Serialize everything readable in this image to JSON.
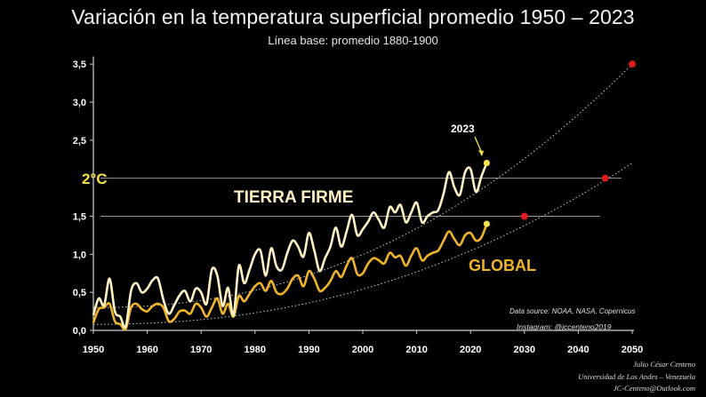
{
  "header": {
    "title": "Variación en la temperatura superficial promedio 1950 – 2023",
    "subtitle": "Línea base: promedio 1880-1900"
  },
  "annotations": {
    "threshold_2c": "2°C",
    "land_label": "TIERRA FIRME",
    "global_label": "GLOBAL",
    "year_callout": "2023",
    "source": "Data source: NOAA, NASA,  Copernicus",
    "instagram": "Instagram: @jccenteno2019"
  },
  "credits": {
    "author": "Julio César Centeno",
    "institution": "Universidad de Los Andes – Venezuela",
    "email": "JC-Centeno@Outlook.com"
  },
  "colors": {
    "background": "#000000",
    "land": "#fff2c4",
    "global": "#f0b429",
    "projection": "#cfcfcf",
    "marker_red": "#e01b1b",
    "marker_2023": "#f4e24a",
    "threshold_label": "#f4e24a"
  },
  "chart_data": {
    "type": "line",
    "xlim": [
      1950,
      2050
    ],
    "ylim": [
      0,
      3.6
    ],
    "x_ticks": [
      1950,
      1960,
      1970,
      1980,
      1990,
      2000,
      2010,
      2020,
      2030,
      2040,
      2050
    ],
    "x_tick_labels": [
      "1950",
      "1960",
      "1970",
      "1980",
      "1990",
      "2000",
      "2010",
      "2020",
      "2030",
      "2040",
      "2050"
    ],
    "y_ticks": [
      0,
      0.5,
      1.0,
      1.5,
      2.5,
      3.0,
      3.5
    ],
    "y_tick_labels": [
      "0,0",
      "0,5",
      "1,0",
      "1,5",
      "2,5",
      "3,0",
      "3,5"
    ],
    "reference_lines": [
      {
        "y": 2.0,
        "x_end": 2048
      },
      {
        "y": 1.5,
        "x_end": 2044
      }
    ],
    "x": [
      1950,
      1951,
      1952,
      1953,
      1954,
      1955,
      1956,
      1957,
      1958,
      1959,
      1960,
      1961,
      1962,
      1963,
      1964,
      1965,
      1966,
      1967,
      1968,
      1969,
      1970,
      1971,
      1972,
      1973,
      1974,
      1975,
      1976,
      1977,
      1978,
      1979,
      1980,
      1981,
      1982,
      1983,
      1984,
      1985,
      1986,
      1987,
      1988,
      1989,
      1990,
      1991,
      1992,
      1993,
      1994,
      1995,
      1996,
      1997,
      1998,
      1999,
      2000,
      2001,
      2002,
      2003,
      2004,
      2005,
      2006,
      2007,
      2008,
      2009,
      2010,
      2011,
      2012,
      2013,
      2014,
      2015,
      2016,
      2017,
      2018,
      2019,
      2020,
      2021,
      2022,
      2023
    ],
    "series": [
      {
        "values": [
          0.2,
          0.42,
          0.33,
          0.68,
          0.25,
          0.18,
          0.05,
          0.52,
          0.62,
          0.5,
          0.55,
          0.66,
          0.68,
          0.4,
          0.22,
          0.33,
          0.46,
          0.52,
          0.38,
          0.55,
          0.5,
          0.35,
          0.8,
          0.72,
          0.32,
          0.56,
          0.2,
          0.85,
          0.62,
          0.8,
          1.0,
          1.05,
          0.72,
          1.08,
          0.84,
          0.8,
          1.02,
          1.18,
          1.1,
          0.97,
          1.28,
          1.05,
          0.78,
          0.95,
          1.1,
          1.35,
          1.1,
          1.3,
          1.52,
          1.25,
          1.33,
          1.43,
          1.55,
          1.45,
          1.35,
          1.62,
          1.55,
          1.65,
          1.42,
          1.55,
          1.68,
          1.42,
          1.5,
          1.55,
          1.58,
          1.8,
          2.08,
          1.88,
          1.78,
          2.08,
          2.12,
          1.82,
          2.02,
          2.2
        ]
      },
      {
        "values": [
          0.1,
          0.28,
          0.3,
          0.35,
          0.12,
          0.08,
          0.02,
          0.3,
          0.35,
          0.28,
          0.25,
          0.32,
          0.35,
          0.3,
          0.12,
          0.15,
          0.25,
          0.26,
          0.22,
          0.35,
          0.3,
          0.18,
          0.3,
          0.42,
          0.22,
          0.35,
          0.18,
          0.45,
          0.38,
          0.48,
          0.58,
          0.62,
          0.52,
          0.65,
          0.5,
          0.48,
          0.55,
          0.68,
          0.72,
          0.58,
          0.78,
          0.68,
          0.52,
          0.56,
          0.65,
          0.78,
          0.7,
          0.85,
          0.95,
          0.74,
          0.75,
          0.88,
          0.95,
          0.92,
          0.88,
          1.02,
          0.96,
          0.98,
          0.85,
          0.98,
          1.08,
          0.92,
          0.98,
          1.02,
          1.05,
          1.18,
          1.3,
          1.2,
          1.12,
          1.25,
          1.28,
          1.18,
          1.22,
          1.4
        ]
      }
    ],
    "projection": {
      "land": {
        "x": [
          2023,
          2050
        ],
        "y": [
          2.2,
          3.5
        ]
      },
      "global": {
        "x": [
          2023,
          2050
        ],
        "y": [
          1.4,
          2.2
        ]
      }
    },
    "markers": [
      {
        "x": 2023,
        "y": 2.2
      },
      {
        "x": 2023,
        "y": 1.4
      },
      {
        "x": 2050,
        "y": 3.5
      },
      {
        "x": 2045,
        "y": 2.0
      },
      {
        "x": 2030,
        "y": 1.5
      }
    ]
  }
}
